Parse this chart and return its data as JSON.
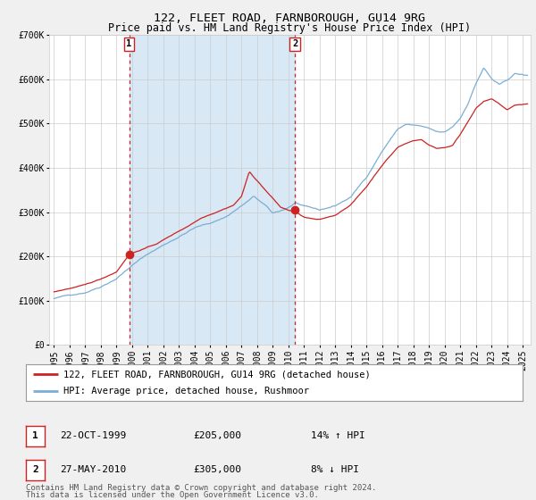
{
  "title": "122, FLEET ROAD, FARNBOROUGH, GU14 9RG",
  "subtitle": "Price paid vs. HM Land Registry's House Price Index (HPI)",
  "ylim": [
    0,
    700000
  ],
  "yticks": [
    0,
    100000,
    200000,
    300000,
    400000,
    500000,
    600000,
    700000
  ],
  "ytick_labels": [
    "£0",
    "£100K",
    "£200K",
    "£300K",
    "£400K",
    "£500K",
    "£600K",
    "£700K"
  ],
  "xlim_start": 1994.7,
  "xlim_end": 2025.5,
  "xticks": [
    1995,
    1996,
    1997,
    1998,
    1999,
    2000,
    2001,
    2002,
    2003,
    2004,
    2005,
    2006,
    2007,
    2008,
    2009,
    2010,
    2011,
    2012,
    2013,
    2014,
    2015,
    2016,
    2017,
    2018,
    2019,
    2020,
    2021,
    2022,
    2023,
    2024,
    2025
  ],
  "hpi_color": "#7aaed6",
  "price_color": "#cc2222",
  "bg_color": "#f0f0f0",
  "plot_bg_color": "#ffffff",
  "shade_color": "#d8e8f4",
  "grid_color": "#cccccc",
  "marker1_date": 1999.81,
  "marker1_value": 205000,
  "marker2_date": 2010.41,
  "marker2_value": 305000,
  "marker1_label": "1",
  "marker2_label": "2",
  "legend_price_label": "122, FLEET ROAD, FARNBOROUGH, GU14 9RG (detached house)",
  "legend_hpi_label": "HPI: Average price, detached house, Rushmoor",
  "table_row1": [
    "1",
    "22-OCT-1999",
    "£205,000",
    "14% ↑ HPI"
  ],
  "table_row2": [
    "2",
    "27-MAY-2010",
    "£305,000",
    "8% ↓ HPI"
  ],
  "footnote1": "Contains HM Land Registry data © Crown copyright and database right 2024.",
  "footnote2": "This data is licensed under the Open Government Licence v3.0.",
  "title_fontsize": 9.5,
  "subtitle_fontsize": 8.5,
  "tick_fontsize": 7,
  "legend_fontsize": 7.5,
  "table_fontsize": 8,
  "footnote_fontsize": 6.5
}
